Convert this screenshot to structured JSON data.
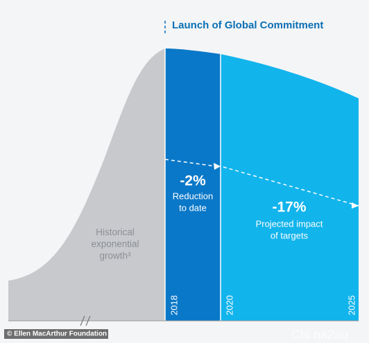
{
  "header": {
    "title": "Launch of Global Commitment"
  },
  "historical": {
    "lines": [
      "Historical",
      "exponential",
      "growth³"
    ]
  },
  "reduction": {
    "value": "-2%",
    "lines": [
      "Reduction",
      "to date"
    ]
  },
  "projected": {
    "value": "-17%",
    "lines": [
      "Projected impact",
      "of targets"
    ]
  },
  "years": [
    "2018",
    "2020",
    "2025"
  ],
  "credit": "© Ellen MacArthur Foundation",
  "watermark": "Chi na2au"
}
